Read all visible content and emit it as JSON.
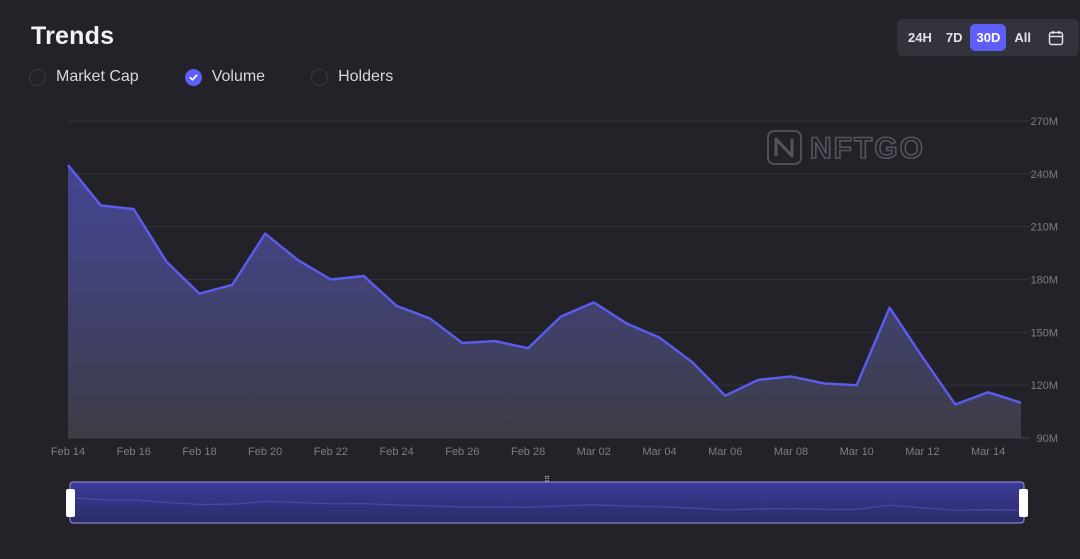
{
  "header": {
    "title": "Trends"
  },
  "metrics": [
    {
      "label": "Market Cap",
      "checked": false
    },
    {
      "label": "Volume",
      "checked": true
    },
    {
      "label": "Holders",
      "checked": false
    }
  ],
  "ranges": {
    "items": [
      "24H",
      "7D",
      "30D",
      "All"
    ],
    "active": "30D",
    "calendar_icon": "calendar-icon"
  },
  "watermark": {
    "text": "NFTGO"
  },
  "colors": {
    "accent": "#5f5ef6",
    "line": "#5c5cf0",
    "background": "#232229"
  },
  "chart_data": {
    "type": "area",
    "title": "",
    "xlabel": "",
    "ylabel": "",
    "x": [
      "Feb 14",
      "Feb 15",
      "Feb 16",
      "Feb 17",
      "Feb 18",
      "Feb 19",
      "Feb 20",
      "Feb 21",
      "Feb 22",
      "Feb 23",
      "Feb 24",
      "Feb 25",
      "Feb 26",
      "Feb 27",
      "Feb 28",
      "Mar 01",
      "Mar 02",
      "Mar 03",
      "Mar 04",
      "Mar 05",
      "Mar 06",
      "Mar 07",
      "Mar 08",
      "Mar 09",
      "Mar 10",
      "Mar 11",
      "Mar 12",
      "Mar 13",
      "Mar 14",
      "Mar 15"
    ],
    "x_tick_labels": [
      "Feb 14",
      "Feb 16",
      "Feb 18",
      "Feb 20",
      "Feb 22",
      "Feb 24",
      "Feb 26",
      "Feb 28",
      "Mar 02",
      "Mar 04",
      "Mar 06",
      "Mar 08",
      "Mar 10",
      "Mar 12",
      "Mar 14"
    ],
    "y_tick_labels": [
      "270M",
      "240M",
      "210M",
      "180M",
      "150M",
      "120M",
      "90M"
    ],
    "ylim": [
      90,
      270
    ],
    "y_unit": "M",
    "grid": true,
    "series": [
      {
        "name": "Volume",
        "values": [
          245,
          222,
          220,
          190,
          172,
          177,
          206,
          191,
          180,
          182,
          165,
          158,
          144,
          145,
          141,
          159,
          167,
          155,
          147,
          133,
          114,
          123,
          125,
          121,
          120,
          164,
          136,
          109,
          116,
          110
        ]
      }
    ]
  }
}
